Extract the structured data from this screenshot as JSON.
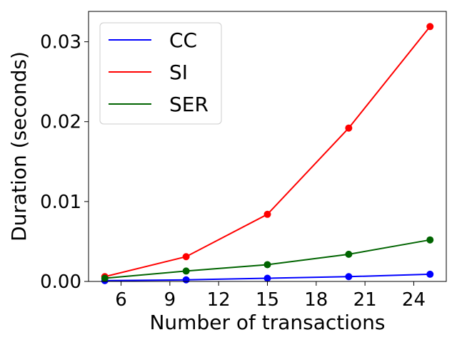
{
  "chart_data": {
    "type": "line",
    "title": "",
    "xlabel": "Number of transactions",
    "ylabel": "Duration (seconds)",
    "x": [
      5,
      10,
      15,
      20,
      25
    ],
    "xticks": [
      "6",
      "9",
      "12",
      "15",
      "18",
      "21",
      "24"
    ],
    "xtick_values": [
      6,
      9,
      12,
      15,
      18,
      21,
      24
    ],
    "yticks": [
      "0.00",
      "0.01",
      "0.02",
      "0.03"
    ],
    "ytick_values": [
      0,
      0.01,
      0.02,
      0.03
    ],
    "xlim": [
      4,
      26
    ],
    "ylim": [
      0,
      0.0338
    ],
    "grid": false,
    "legend_position": "upper-left",
    "series": [
      {
        "name": "CC",
        "color": "#0000ff",
        "values": [
          0.0001,
          0.0002,
          0.0004,
          0.0006,
          0.0009
        ]
      },
      {
        "name": "SI",
        "color": "#ff0000",
        "values": [
          0.0006,
          0.0031,
          0.0084,
          0.0192,
          0.0319
        ]
      },
      {
        "name": "SER",
        "color": "#006400",
        "values": [
          0.0004,
          0.0013,
          0.0021,
          0.0034,
          0.0052
        ]
      }
    ]
  }
}
